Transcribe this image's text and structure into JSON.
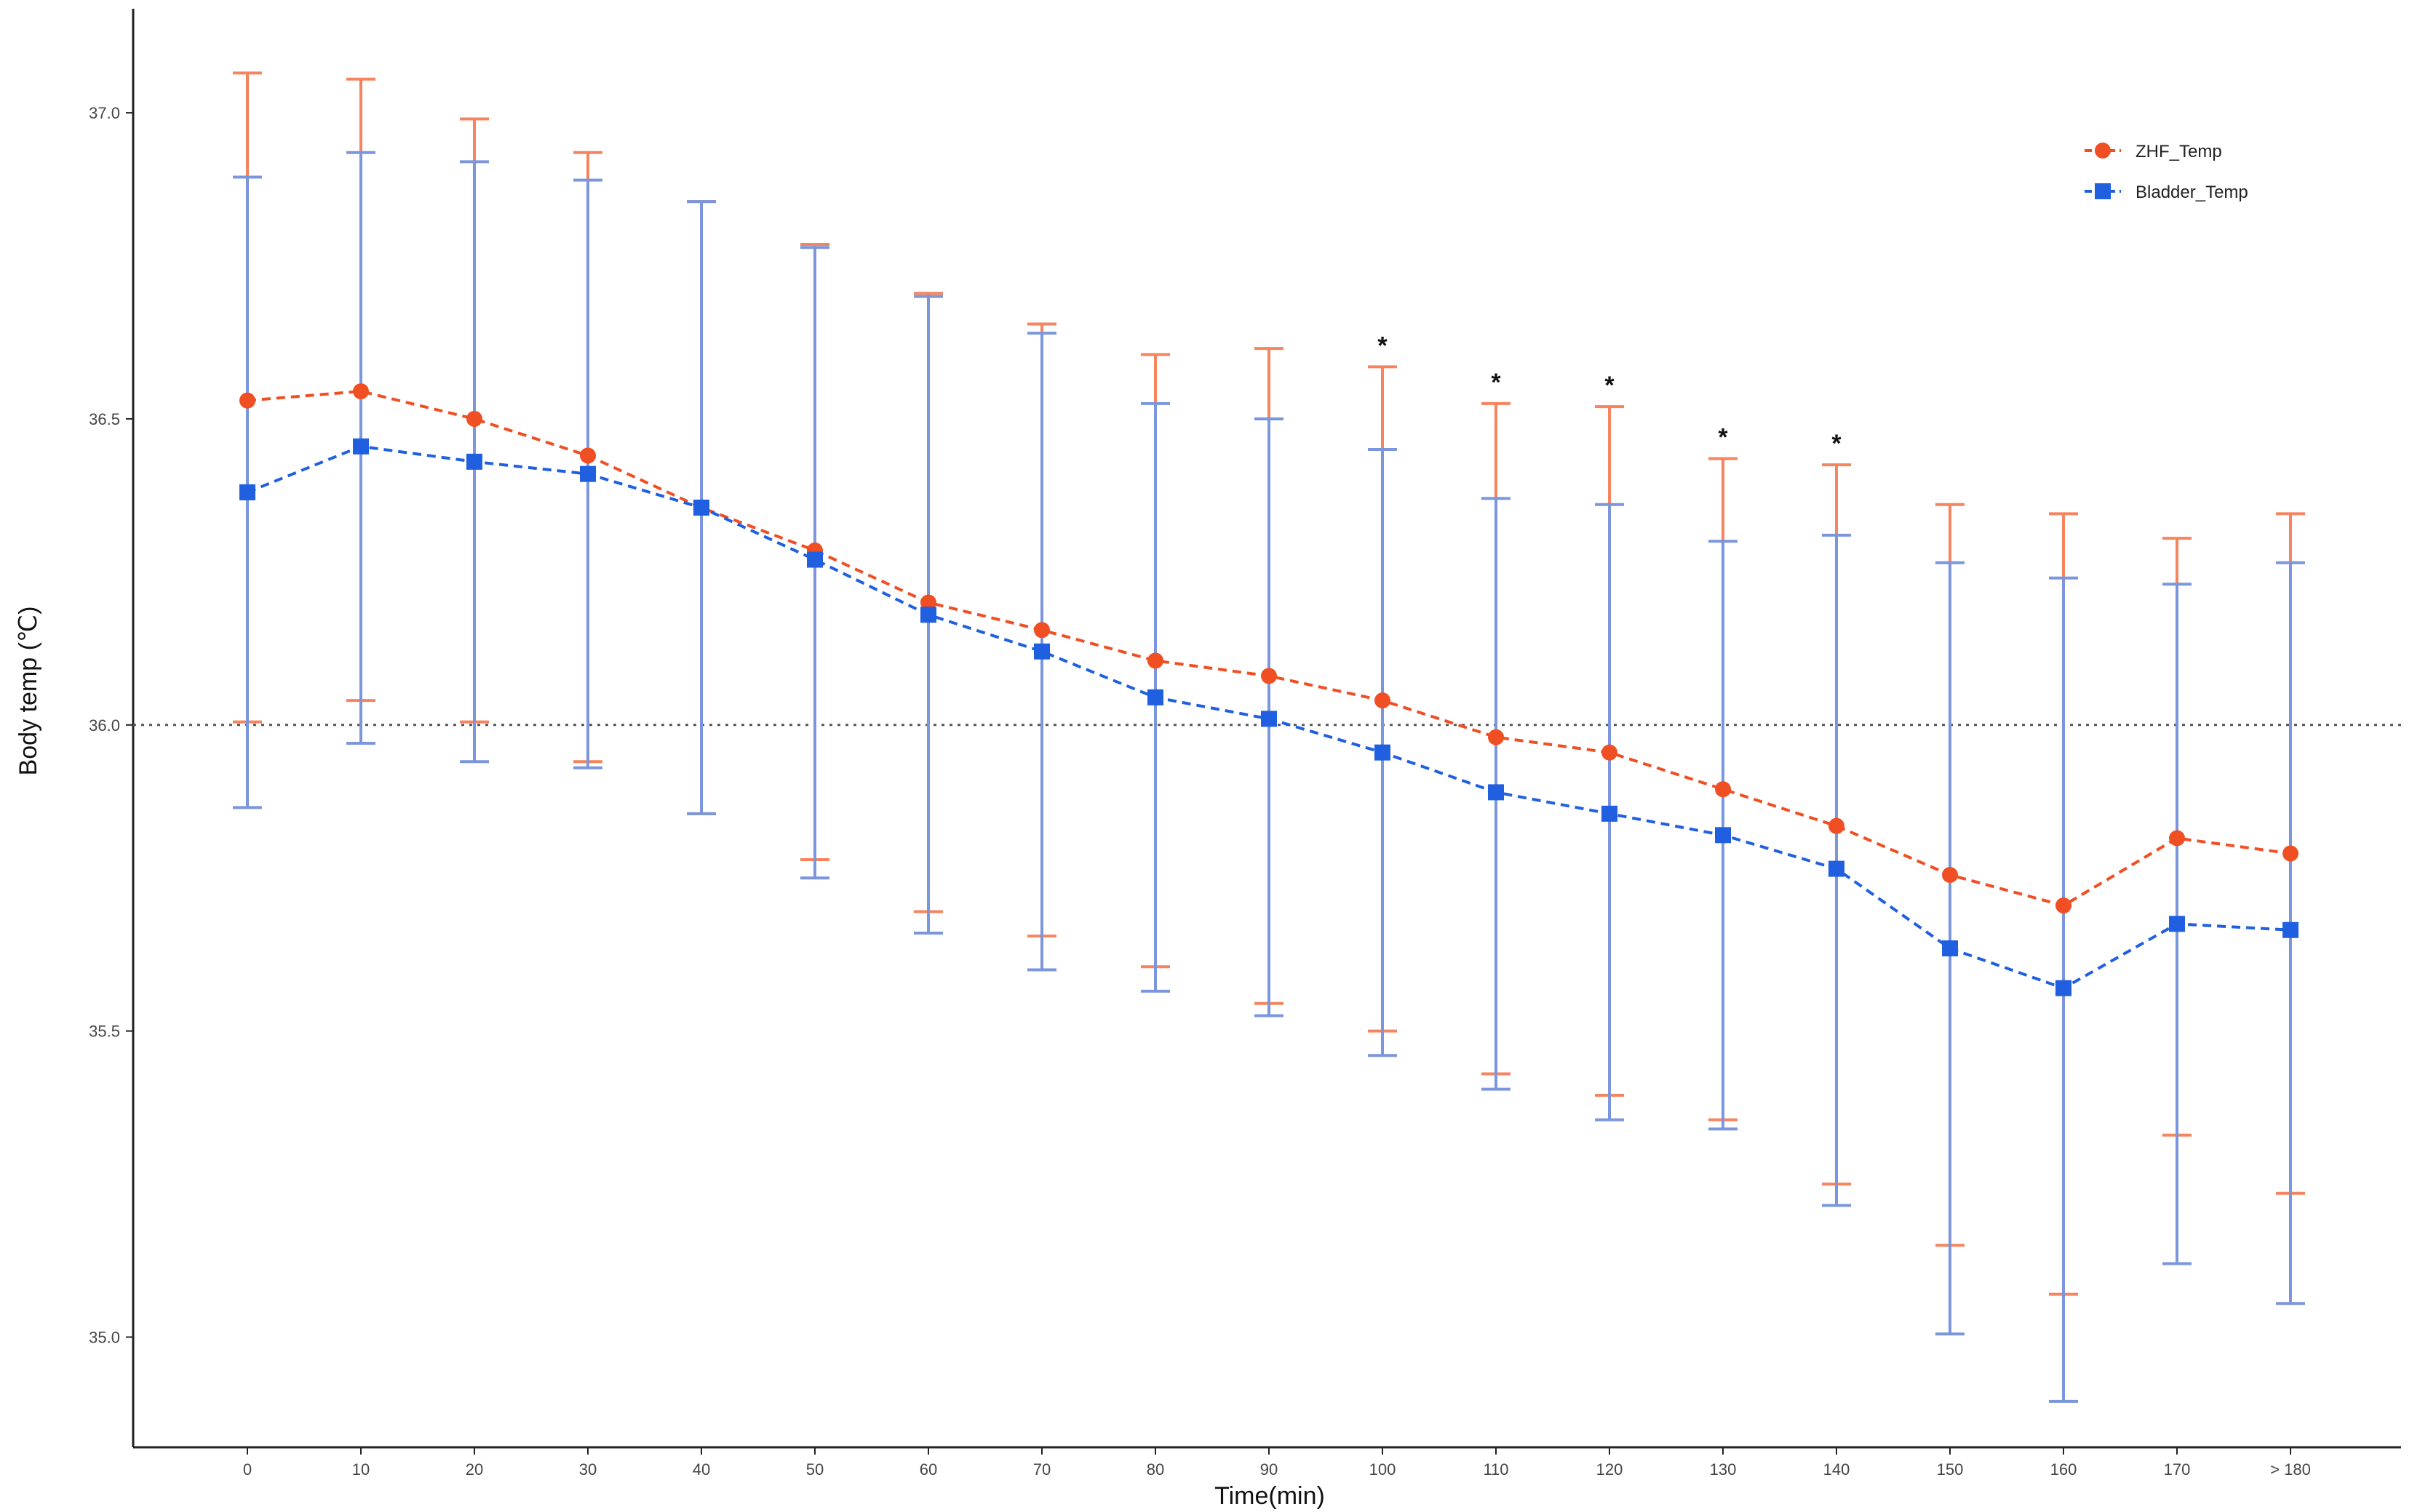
{
  "chart_data": {
    "type": "line",
    "xlabel": "Time(min)",
    "ylabel": "Body temp (℃)",
    "categories": [
      "0",
      "10",
      "20",
      "30",
      "40",
      "50",
      "60",
      "70",
      "80",
      "90",
      "100",
      "110",
      "120",
      "130",
      "140",
      "150",
      "160",
      "170",
      "> 180"
    ],
    "ylim": [
      34.82,
      37.17
    ],
    "yticks": [
      "35.0",
      "35.5",
      "36.0",
      "36.5",
      "37.0"
    ],
    "reference_line": 36.0,
    "grid": false,
    "legend_position": "top-right",
    "significance_marker": "*",
    "series": [
      {
        "name": "ZHF_Temp",
        "color": "#f04e23",
        "error_color": "#f5845f",
        "marker": "circle",
        "values": [
          36.53,
          36.545,
          36.5,
          36.44,
          36.355,
          36.285,
          36.2,
          36.155,
          36.105,
          36.08,
          36.04,
          35.98,
          35.955,
          35.895,
          35.835,
          35.755,
          35.705,
          35.815,
          35.79
        ],
        "upper": [
          37.065,
          37.055,
          36.99,
          36.935,
          36.855,
          36.785,
          36.705,
          36.655,
          36.605,
          36.615,
          36.585,
          36.525,
          36.52,
          36.435,
          36.425,
          36.36,
          36.345,
          36.305,
          36.345
        ],
        "lower": [
          36.005,
          36.04,
          36.005,
          35.94,
          35.855,
          35.78,
          35.695,
          35.655,
          35.605,
          35.545,
          35.5,
          35.43,
          35.395,
          35.355,
          35.25,
          35.15,
          35.07,
          35.33,
          35.235
        ],
        "significant": [
          false,
          false,
          false,
          false,
          false,
          false,
          false,
          false,
          false,
          false,
          true,
          true,
          true,
          true,
          true,
          false,
          false,
          false,
          false
        ]
      },
      {
        "name": "Bladder_Temp",
        "color": "#1f5fe0",
        "error_color": "#7b96dd",
        "marker": "square",
        "values": [
          36.38,
          36.455,
          36.43,
          36.41,
          36.355,
          36.27,
          36.18,
          36.12,
          36.045,
          36.01,
          35.955,
          35.89,
          35.855,
          35.82,
          35.765,
          35.635,
          35.57,
          35.675,
          35.665
        ],
        "upper": [
          36.895,
          36.935,
          36.92,
          36.89,
          36.855,
          36.78,
          36.7,
          36.64,
          36.525,
          36.5,
          36.45,
          36.37,
          36.36,
          36.3,
          36.31,
          36.265,
          36.24,
          36.23,
          36.265
        ],
        "lower": [
          35.865,
          35.97,
          35.94,
          35.93,
          35.855,
          35.75,
          35.66,
          35.6,
          35.565,
          35.525,
          35.46,
          35.405,
          35.355,
          35.34,
          35.215,
          35.005,
          34.895,
          35.12,
          35.055
        ]
      }
    ]
  }
}
